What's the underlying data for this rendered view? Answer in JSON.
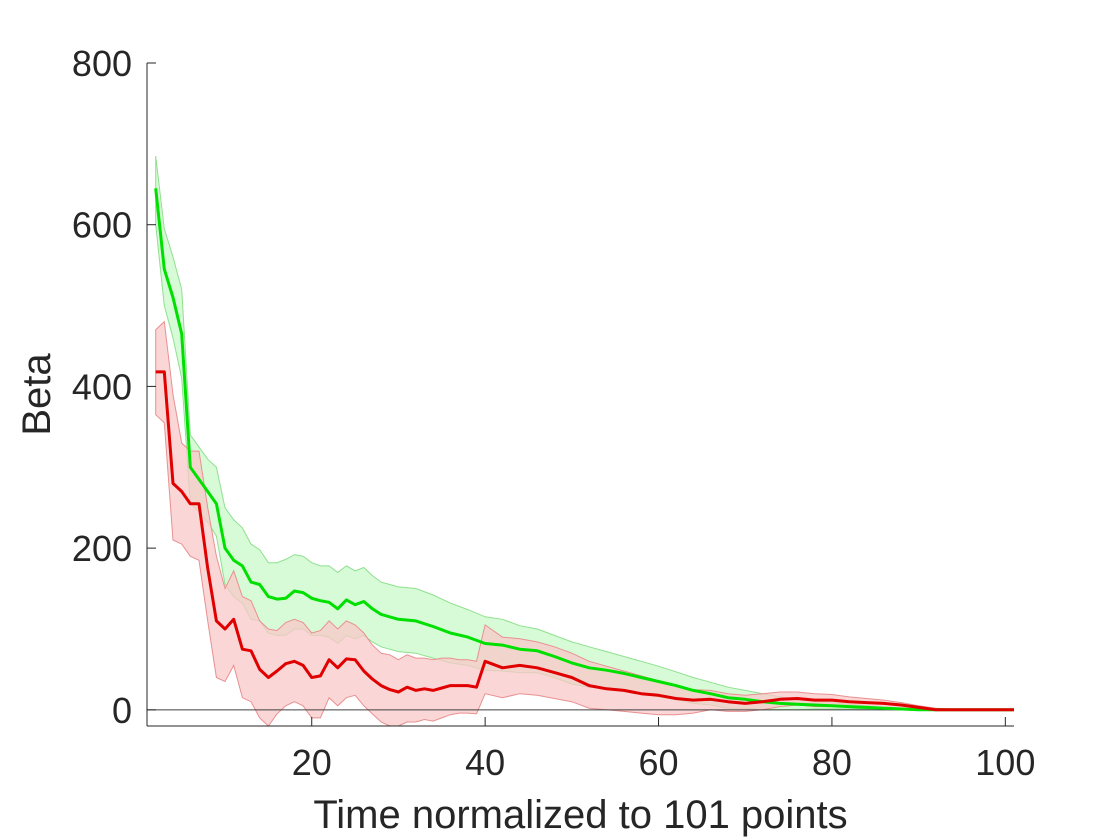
{
  "chart_data": {
    "type": "line",
    "xlabel": "Time normalized to 101 points",
    "ylabel": "Beta",
    "xlim": [
      1,
      101
    ],
    "ylim": [
      -20,
      800
    ],
    "xticks": [
      20,
      40,
      60,
      80,
      100
    ],
    "yticks": [
      0,
      200,
      400,
      600,
      800
    ],
    "zero_line": true,
    "grid": false,
    "series": [
      {
        "color": "#00e000",
        "band_fill": "#c8fac8",
        "band_stroke": "#8fe08f",
        "x": [
          2,
          3,
          4,
          5,
          6,
          7,
          8,
          9,
          10,
          11,
          12,
          13,
          14,
          15,
          16,
          17,
          18,
          19,
          20,
          21,
          22,
          23,
          24,
          25,
          26,
          27,
          28,
          30,
          32,
          34,
          36,
          38,
          40,
          42,
          44,
          46,
          48,
          50,
          52,
          54,
          56,
          58,
          60,
          62,
          64,
          66,
          68,
          70,
          72,
          74,
          76,
          78,
          80,
          82,
          84,
          86,
          88,
          90,
          92,
          95,
          101
        ],
        "values": [
          645,
          545,
          510,
          465,
          300,
          285,
          270,
          255,
          200,
          185,
          178,
          158,
          155,
          140,
          137,
          138,
          147,
          145,
          138,
          135,
          133,
          125,
          136,
          130,
          134,
          125,
          118,
          112,
          110,
          103,
          95,
          90,
          82,
          80,
          75,
          73,
          66,
          58,
          52,
          49,
          45,
          40,
          35,
          30,
          24,
          20,
          15,
          13,
          10,
          8,
          7,
          6,
          5,
          4,
          3,
          2,
          1,
          0,
          0,
          0,
          0
        ],
        "upper": [
          685,
          595,
          560,
          520,
          340,
          325,
          310,
          300,
          250,
          235,
          225,
          205,
          198,
          182,
          182,
          186,
          192,
          190,
          182,
          178,
          178,
          170,
          178,
          172,
          176,
          166,
          158,
          152,
          150,
          142,
          132,
          124,
          115,
          112,
          104,
          100,
          92,
          84,
          78,
          72,
          66,
          60,
          54,
          47,
          40,
          34,
          28,
          24,
          20,
          16,
          13,
          11,
          9,
          7,
          5,
          3,
          2,
          1,
          0,
          0,
          0
        ],
        "lower": [
          600,
          500,
          460,
          410,
          255,
          245,
          232,
          215,
          155,
          140,
          132,
          112,
          110,
          95,
          92,
          92,
          100,
          100,
          92,
          92,
          90,
          82,
          92,
          88,
          92,
          84,
          78,
          72,
          70,
          64,
          58,
          55,
          49,
          48,
          46,
          46,
          40,
          32,
          28,
          26,
          24,
          20,
          16,
          13,
          8,
          6,
          2,
          2,
          0,
          0,
          0,
          1,
          1,
          1,
          1,
          1,
          0,
          0,
          0,
          0,
          0
        ]
      },
      {
        "color": "#e00000",
        "band_fill": "#fac8c8",
        "band_stroke": "#e89090",
        "x": [
          2,
          3,
          4,
          5,
          6,
          7,
          8,
          9,
          10,
          11,
          12,
          13,
          14,
          15,
          16,
          17,
          18,
          19,
          20,
          21,
          22,
          23,
          24,
          25,
          26,
          27,
          28,
          29,
          30,
          31,
          32,
          33,
          34,
          35,
          36,
          37,
          38,
          39,
          40,
          42,
          44,
          46,
          48,
          50,
          52,
          54,
          56,
          58,
          60,
          62,
          64,
          66,
          68,
          70,
          72,
          74,
          76,
          78,
          80,
          82,
          84,
          86,
          88,
          90,
          92,
          95,
          101
        ],
        "values": [
          418,
          418,
          280,
          270,
          255,
          255,
          175,
          110,
          100,
          112,
          75,
          73,
          50,
          40,
          48,
          57,
          60,
          55,
          40,
          42,
          62,
          52,
          63,
          62,
          48,
          38,
          30,
          25,
          22,
          28,
          24,
          26,
          24,
          27,
          30,
          30,
          30,
          28,
          60,
          52,
          55,
          52,
          46,
          40,
          30,
          26,
          24,
          20,
          18,
          14,
          12,
          13,
          10,
          8,
          10,
          13,
          14,
          12,
          12,
          10,
          9,
          8,
          6,
          3,
          0,
          0,
          0
        ],
        "upper": [
          470,
          480,
          390,
          330,
          320,
          320,
          250,
          190,
          150,
          172,
          140,
          135,
          110,
          100,
          98,
          108,
          112,
          108,
          95,
          98,
          110,
          100,
          110,
          105,
          95,
          80,
          70,
          68,
          62,
          68,
          64,
          64,
          62,
          64,
          64,
          62,
          62,
          60,
          105,
          90,
          88,
          84,
          78,
          70,
          60,
          54,
          48,
          42,
          36,
          30,
          25,
          24,
          20,
          18,
          20,
          22,
          22,
          20,
          19,
          16,
          14,
          12,
          9,
          5,
          2,
          0,
          0
        ],
        "lower": [
          365,
          355,
          210,
          205,
          190,
          185,
          110,
          40,
          35,
          55,
          15,
          10,
          -10,
          -20,
          -5,
          5,
          10,
          5,
          -10,
          -10,
          15,
          5,
          15,
          18,
          5,
          -5,
          -15,
          -20,
          -20,
          -15,
          -15,
          -12,
          -14,
          -10,
          -6,
          -4,
          -4,
          -5,
          20,
          15,
          20,
          18,
          14,
          10,
          2,
          0,
          -2,
          -4,
          -6,
          -6,
          -4,
          0,
          -2,
          -2,
          0,
          4,
          6,
          4,
          4,
          4,
          3,
          3,
          2,
          1,
          -1,
          0,
          0
        ]
      }
    ]
  }
}
